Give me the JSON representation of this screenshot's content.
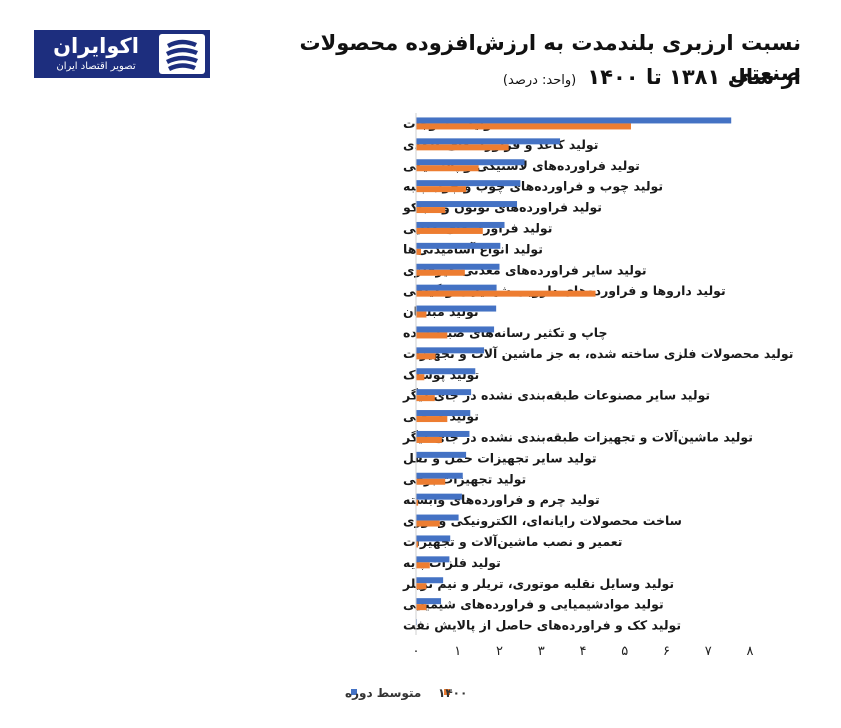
{
  "logo": {
    "name": "اکوایران",
    "tagline": "تصویر اقتصاد ایران",
    "bg_color": "#1d2e7e",
    "mark_icon": "striped-s-logo-icon"
  },
  "title": "نسبت ارزبری بلندمدت به ارزش‌افزوده محصولات صنعتی",
  "subtitle": "از سال ۱۳۸۱ تا ۱۴۰۰",
  "unit": "(واحد: درصد)",
  "chart_data": {
    "type": "bar",
    "orientation": "horizontal",
    "categories": [
      "تولید منسوجات",
      "تولید کاغذ و فراورده‌های کاغذی",
      "تولید فراورده‌های لاستیکی و پلاستیکی",
      "تولید چوب و فراورده‌های چوب و چوب پنبه",
      "تولید فراورده‌های توتون و تنباکو",
      "تولید فراورده‌های غذایی",
      "تولید انواع آشامیدنی‌ها",
      "تولید سایر فراورده‌های معدنی غیرفلزی",
      "تولید داروها و فراورده‌های دارویی شیمیایی و گیاهی",
      "تولید مبلمان",
      "چاپ و تکثیر رسانه‌های ضبط شده",
      "تولید محصولات فلزی ساخته شده، به جز ماشین آلات و تجهیزات",
      "تولید پوشاک",
      "تولید سایر مصنوعات طبقه‌بندی نشده در جای دیگر",
      "تولید صنعتی",
      "تولید ماشین‌آلات و تجهیزات طبقه‌بندی نشده در جای دیگر",
      "تولید سایر تجهیزات حمل و نقل",
      "تولید تجهیزات برقی",
      "تولید چرم و فراورده‌های وابسته",
      "ساخت محصولات رایانه‌ای، الکترونیکی و نوری",
      "تعمیر و نصب ماشین‌آلات و تجهیزات",
      "تولید فلزات پایه",
      "تولید وسایل نقلیه موتوری، تریلر و نیم تریلر",
      "تولید موادشیمیایی و فراورده‌های شیمیایی",
      "تولید کک و فراورده‌های حاصل از پالایش نفت"
    ],
    "series": [
      {
        "name": "متوسط دوره",
        "color": "#4472c4",
        "values": [
          7.55,
          3.45,
          2.6,
          2.5,
          2.42,
          2.12,
          2.02,
          2.0,
          1.93,
          1.92,
          1.87,
          1.63,
          1.42,
          1.32,
          1.3,
          1.28,
          1.2,
          1.12,
          1.1,
          1.02,
          0.82,
          0.8,
          0.65,
          0.6,
          0.02
        ]
      },
      {
        "name": "۱۴۰۰",
        "color": "#ed7d31",
        "values": [
          5.15,
          2.22,
          1.5,
          1.2,
          0.7,
          1.6,
          0.12,
          1.17,
          4.3,
          0.25,
          0.75,
          0.47,
          0.2,
          0.45,
          0.75,
          0.62,
          0.0,
          0.7,
          0.05,
          0.57,
          0.05,
          0.33,
          0.25,
          0.25,
          0.0
        ]
      }
    ],
    "x_ticks": [
      "۰",
      "۱",
      "۲",
      "۳",
      "۴",
      "۵",
      "۶",
      "۷",
      "۸"
    ],
    "xlim": [
      0,
      8
    ],
    "grid": false,
    "legend_position": "bottom"
  }
}
